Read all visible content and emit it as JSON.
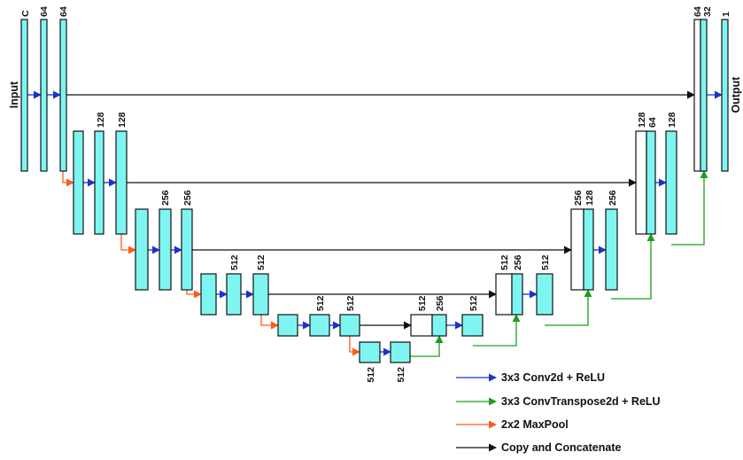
{
  "io": {
    "input": "Input",
    "output": "Output"
  },
  "channels": {
    "c": "C",
    "c64": "64",
    "c128": "128",
    "c256": "256",
    "c512": "512",
    "c32": "32",
    "c1": "1"
  },
  "legend": {
    "conv": "3x3 Conv2d + ReLU",
    "convt": "3x3 ConvTranspose2d + ReLU",
    "pool": "2x2 MaxPool",
    "copy": "Copy and Concatenate"
  },
  "colors": {
    "conv": "#1a33cc",
    "convt": "#1aa01a",
    "pool": "#ff5a1a",
    "copy": "#111111",
    "feature_map": "#7ff5f2"
  }
}
